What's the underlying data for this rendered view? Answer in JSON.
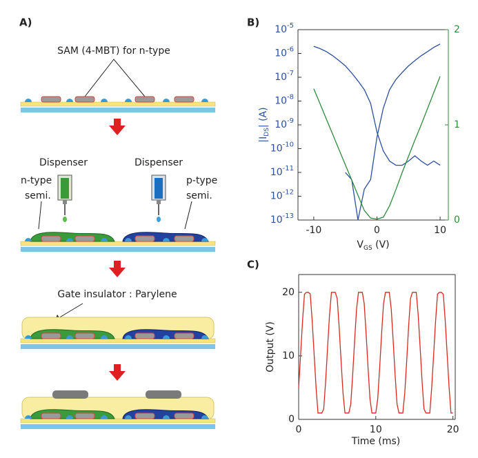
{
  "panels": {
    "a": "A)",
    "b": "B)",
    "c": "C)"
  },
  "diagram": {
    "sam": "SAM (4-MBT) for n-type",
    "dispenser_left": "Dispenser",
    "dispenser_right": "Dispenser",
    "n_type": [
      "n-type",
      "semi."
    ],
    "p_type": [
      "p-type",
      "semi."
    ],
    "gate_insulator": "Gate insulator : Parylene"
  },
  "chart_data": [
    {
      "type": "line",
      "ylog": true,
      "xlabel": [
        "V",
        "GS",
        " (V)"
      ],
      "ylabel": [
        "|I",
        "DS",
        "| (A)"
      ],
      "ycolor": "#2a4fa0",
      "y2color": "#2e8b3a",
      "x": [
        -10,
        -9,
        -8,
        -7,
        -6,
        -5,
        -4,
        -3,
        -2,
        -1,
        0,
        1,
        2,
        3,
        4,
        5,
        6,
        7,
        8,
        9,
        10
      ],
      "xlim": [
        -12.5,
        11.3
      ],
      "xticks": [
        -10,
        0,
        10
      ],
      "ylim": [
        1e-13,
        1e-05
      ],
      "yticks": [
        {
          "value": 1e-13,
          "label": "10-13"
        },
        {
          "value": 1e-12,
          "label": "10-12"
        },
        {
          "value": 1e-11,
          "label": "10-11"
        },
        {
          "value": 1e-10,
          "label": "10-10"
        },
        {
          "value": 1e-09,
          "label": "10-9"
        },
        {
          "value": 1e-08,
          "label": "10-8"
        },
        {
          "value": 1e-07,
          "label": "10-7"
        },
        {
          "value": 1e-06,
          "label": "10-6"
        },
        {
          "value": 1e-05,
          "label": "10-5"
        }
      ],
      "y2lim": [
        0,
        2
      ],
      "y2ticks": [
        0,
        1,
        2
      ],
      "series": [
        {
          "color": "#2a4fa0",
          "values": [
            2e-06,
            1.6e-06,
            1.2e-06,
            8e-07,
            5e-07,
            3e-07,
            1.5e-07,
            7e-08,
            3e-08,
            8e-09,
            5e-10,
            8e-11,
            3e-11,
            2e-11,
            2e-11,
            3e-11,
            5e-11,
            3e-11,
            2e-11,
            3e-11,
            2e-11
          ]
        },
        {
          "color": "#2a4fa0",
          "values": [
            null,
            null,
            null,
            null,
            null,
            1e-11,
            5e-12,
            1e-13,
            2e-12,
            5e-12,
            3e-10,
            5e-09,
            3e-08,
            8e-08,
            1.6e-07,
            3e-07,
            5e-07,
            8e-07,
            1.2e-06,
            1.8e-06,
            2.5e-06
          ]
        },
        {
          "color": "#2e8b3a",
          "axis": "y2",
          "values": [
            1.38,
            1.22,
            1.06,
            0.9,
            0.74,
            0.58,
            0.42,
            0.26,
            0.1,
            0.02,
            0.01,
            null,
            null,
            null,
            null,
            null,
            null,
            null,
            null,
            null,
            null
          ]
        },
        {
          "color": "#2e8b3a",
          "axis": "y2",
          "values": [
            null,
            null,
            null,
            null,
            null,
            null,
            null,
            null,
            null,
            null,
            0.01,
            0.03,
            0.15,
            0.32,
            0.5,
            0.67,
            0.84,
            1.0,
            1.17,
            1.34,
            1.51
          ]
        }
      ]
    },
    {
      "type": "line",
      "xlabel": [
        "Time (ms)"
      ],
      "ylabel": [
        "Output (V)"
      ],
      "x": [
        0,
        0.25,
        0.5,
        0.75,
        1,
        1.25,
        1.5,
        1.75,
        2,
        2.25,
        2.5,
        2.75,
        3,
        3.25,
        3.5,
        3.75,
        4,
        4.25,
        4.5,
        4.75,
        5,
        5.25,
        5.5,
        5.75,
        6,
        6.25,
        6.5,
        6.75,
        7,
        7.25,
        7.5,
        7.75,
        8,
        8.25,
        8.5,
        8.75,
        9,
        9.25,
        9.5,
        9.75,
        10,
        10.25,
        10.5,
        10.75,
        11,
        11.25,
        11.5,
        11.75,
        12,
        12.25,
        12.5,
        12.75,
        13,
        13.25,
        13.5,
        13.75,
        14,
        14.25,
        14.5,
        14.75,
        15,
        15.25,
        15.5,
        15.75,
        16,
        16.25,
        16.5,
        16.75,
        17,
        17.25,
        17.5,
        17.75,
        18,
        18.25,
        18.5,
        18.75,
        19,
        19.25,
        19.5,
        19.75,
        20
      ],
      "xlim": [
        0,
        20.3
      ],
      "xticks": [
        0,
        10,
        20
      ],
      "ylim": [
        0,
        22.8
      ],
      "yticks": [
        0,
        10,
        20
      ],
      "series": [
        {
          "color": "#d42a1e",
          "values": [
            5.0,
            10.19,
            15.44,
            19.68,
            20,
            20,
            19.74,
            15.52,
            10.27,
            5.07,
            1,
            1,
            1,
            1.62,
            5.99,
            11.28,
            16.41,
            20,
            20,
            20,
            19.01,
            14.51,
            9.18,
            4.13,
            1,
            1,
            1,
            2.38,
            7.01,
            12.36,
            17.33,
            20,
            20,
            20,
            18.22,
            13.46,
            8.1,
            3.23,
            1,
            1,
            1,
            3.2,
            8.07,
            13.43,
            18.19,
            20,
            20,
            20,
            17.36,
            12.4,
            7.05,
            2.41,
            1,
            1,
            1,
            4.1,
            9.14,
            14.47,
            18.99,
            20,
            20,
            20,
            16.44,
            11.31,
            6.02,
            1.64,
            1,
            1,
            1,
            5.04,
            10.23,
            15.48,
            19.72,
            20,
            20,
            19.71,
            15.48,
            10.22,
            5.04,
            1,
            1
          ]
        }
      ]
    }
  ]
}
